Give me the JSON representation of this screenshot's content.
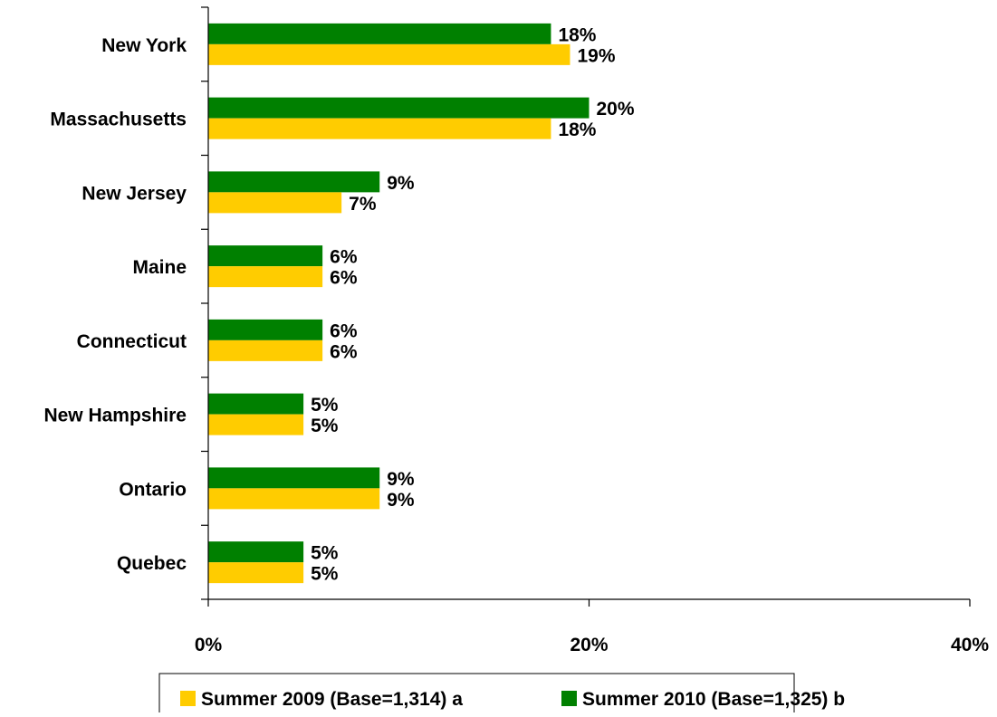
{
  "chart_data": {
    "type": "bar",
    "orientation": "horizontal",
    "categories": [
      "New York",
      "Massachusetts",
      "New Jersey",
      "Maine",
      "Connecticut",
      "New Hampshire",
      "Ontario",
      "Quebec"
    ],
    "series": [
      {
        "name": "Summer 2010 (Base=1,325) b",
        "color": "#008000",
        "values": [
          18,
          20,
          9,
          6,
          6,
          5,
          9,
          5
        ],
        "labels": [
          "18%",
          "20%",
          "9%",
          "6%",
          "6%",
          "5%",
          "9%",
          "5%"
        ]
      },
      {
        "name": "Summer 2009 (Base=1,314) a",
        "color": "#FFCC00",
        "values": [
          19,
          18,
          7,
          6,
          6,
          5,
          9,
          5
        ],
        "labels": [
          "19%",
          "18%",
          "7%",
          "6%",
          "6%",
          "5%",
          "9%",
          "5%"
        ]
      }
    ],
    "xlim": [
      0,
      40
    ],
    "x_ticks": [
      "0%",
      "20%",
      "40%"
    ],
    "grid": false,
    "legend_position": "bottom",
    "legend_order": [
      "Summer 2009 (Base=1,314) a",
      "Summer 2010 (Base=1,325) b"
    ]
  }
}
